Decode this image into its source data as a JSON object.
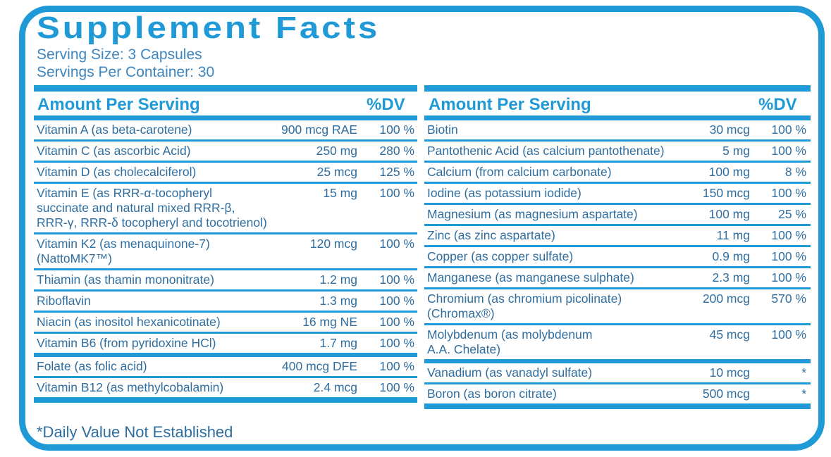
{
  "header": {
    "title": "Supplement Facts",
    "serving_size": "Serving Size: 3 Capsules",
    "servings_per_container": "Servings Per Container: 30"
  },
  "left": {
    "header": {
      "amount": "Amount Per Serving",
      "dv": "%DV"
    },
    "rows": [
      {
        "name": [
          "Vitamin A (as beta-carotene)"
        ],
        "amount": "900 mcg RAE",
        "dv": "100 %"
      },
      {
        "name": [
          "Vitamin C (as ascorbic Acid)"
        ],
        "amount": "250 mg",
        "dv": "280 %"
      },
      {
        "name": [
          "Vitamin D (as cholecalciferol)"
        ],
        "amount": "25 mcg",
        "dv": "125 %"
      },
      {
        "name": [
          "Vitamin E (as RRR-α-tocopheryl",
          "succinate and natural mixed RRR-β,",
          "RRR-γ, RRR-δ tocopheryl and tocotrienol)"
        ],
        "amount": "15 mg",
        "dv": "100 %"
      },
      {
        "name": [
          "Vitamin K2 (as menaquinone-7)",
          "(NattoMK7™)"
        ],
        "amount": "120 mcg",
        "dv": "100 %"
      },
      {
        "name": [
          "Thiamin (as thamin mononitrate)"
        ],
        "amount": "1.2 mg",
        "dv": "100 %"
      },
      {
        "name": [
          "Riboflavin"
        ],
        "amount": "1.3 mg",
        "dv": "100 %"
      },
      {
        "name": [
          "Niacin (as inositol hexanicotinate)"
        ],
        "amount": "16 mg NE",
        "dv": "100 %"
      },
      {
        "name": [
          "Vitamin B6 (from pyridoxine HCl)"
        ],
        "amount": "1.7 mg",
        "dv": "100 %"
      },
      {
        "name": [
          "Folate (as folic acid)"
        ],
        "amount": "400 mcg DFE",
        "dv": "100 %"
      },
      {
        "name": [
          "Vitamin B12 (as methylcobalamin)"
        ],
        "amount": "2.4 mcg",
        "dv": "100 %"
      }
    ]
  },
  "right": {
    "header": {
      "amount": "Amount Per Serving",
      "dv": "%DV"
    },
    "rows": [
      {
        "name": [
          "Biotin"
        ],
        "amount": "30 mcg",
        "dv": "100 %"
      },
      {
        "name": [
          "Pantothenic Acid (as calcium pantothenate)"
        ],
        "amount": "5 mg",
        "dv": "100 %"
      },
      {
        "name": [
          "Calcium (from calcium carbonate)"
        ],
        "amount": "100 mg",
        "dv": "8 %"
      },
      {
        "name": [
          "Iodine (as potassium iodide)"
        ],
        "amount": "150 mcg",
        "dv": "100 %"
      },
      {
        "name": [
          "Magnesium (as magnesium aspartate)"
        ],
        "amount": "100 mg",
        "dv": "25 %"
      },
      {
        "name": [
          "Zinc (as zinc aspartate)"
        ],
        "amount": "11 mg",
        "dv": "100 %"
      },
      {
        "name": [
          "Copper (as copper sulfate)"
        ],
        "amount": "0.9 mg",
        "dv": "100 %"
      },
      {
        "name": [
          "Manganese (as manganese sulphate)"
        ],
        "amount": "2.3 mg",
        "dv": "100 %"
      },
      {
        "name": [
          "Chromium (as chromium picolinate)",
          "(Chromax®)"
        ],
        "amount": "200 mcg",
        "dv": "570 %"
      },
      {
        "name": [
          "Molybdenum (as molybdenum",
          "A.A. Chelate)"
        ],
        "amount": "45 mcg",
        "dv": "100 %"
      },
      {
        "name": [
          "Vanadium (as vanadyl sulfate)"
        ],
        "amount": "10 mcg",
        "dv": "*"
      },
      {
        "name": [
          "Boron (as boron citrate)"
        ],
        "amount": "500 mcg",
        "dv": "*"
      }
    ]
  },
  "footnote": "*Daily Value Not Established"
}
